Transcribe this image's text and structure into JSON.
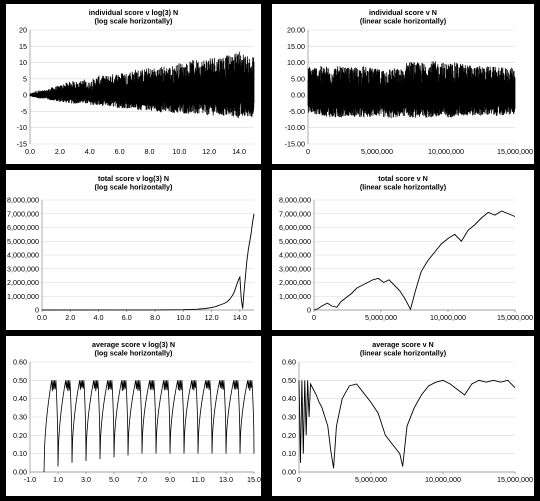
{
  "chart_data": [
    {
      "type": "line",
      "title": [
        "individual score v log(3) N",
        "(log scale horizontally)"
      ],
      "xlim": [
        0,
        15
      ],
      "ylim": [
        -15,
        20
      ],
      "x_ticks": [
        0,
        2,
        4,
        6,
        8,
        10,
        12,
        14
      ],
      "x_tick_labels": [
        "0.0",
        "2.0",
        "4.0",
        "6.0",
        "8.0",
        "10.0",
        "12.0",
        "14.0"
      ],
      "y_ticks": [
        -15,
        -10,
        -5,
        0,
        5,
        10,
        15,
        20
      ],
      "y_tick_labels": [
        "-15",
        "-10",
        "-5",
        "0",
        "5",
        "10",
        "15",
        "20"
      ],
      "grid": "horizontal",
      "color": "#000000",
      "description_series": "noise",
      "x": [
        0.0,
        0.5,
        1.0,
        1.5,
        2.0,
        2.5,
        3.0,
        3.3,
        3.6,
        3.9,
        4.2,
        4.6,
        5.0,
        5.5,
        6.0,
        6.5,
        7.0,
        7.5,
        8.0,
        8.5,
        9.0,
        9.5,
        10.0,
        10.5,
        11.0,
        11.5,
        12.0,
        12.5,
        13.0,
        13.5,
        14.0,
        14.5,
        15.0
      ],
      "y_max": [
        0.5,
        1.5,
        1.5,
        2.5,
        3.0,
        4.0,
        4.5,
        4.0,
        5.0,
        4.0,
        5.0,
        6.0,
        6.0,
        6.5,
        7.0,
        7.0,
        8.0,
        8.0,
        8.5,
        8.5,
        9.0,
        9.0,
        10.0,
        10.0,
        11.0,
        11.0,
        12.0,
        12.0,
        12.5,
        12.0,
        14.0,
        12.0,
        12.0
      ],
      "y_min": [
        -0.5,
        -1.5,
        -1.5,
        -2.5,
        -3.0,
        -3.5,
        -4.0,
        -3.5,
        -4.0,
        -4.0,
        -4.5,
        -5.0,
        -5.0,
        -5.5,
        -6.0,
        -6.0,
        -6.5,
        -7.0,
        -7.0,
        -7.5,
        -8.0,
        -8.0,
        -8.5,
        -8.5,
        -9.0,
        -9.0,
        -9.5,
        -9.5,
        -10.0,
        -10.0,
        -11.0,
        -10.0,
        -10.0
      ]
    },
    {
      "type": "line",
      "title": [
        "individual score v N",
        "(linear scale horizontally)"
      ],
      "xlim": [
        0,
        15000000
      ],
      "ylim": [
        -15,
        20
      ],
      "x_ticks": [
        0,
        5000000,
        10000000,
        15000000
      ],
      "x_tick_labels": [
        "0",
        "5,000,000",
        "10,000,000",
        "15,000,000"
      ],
      "y_ticks": [
        -15,
        -10,
        -5,
        0,
        5,
        10,
        15,
        20
      ],
      "y_tick_labels": [
        "-15.00",
        "-10.00",
        "-5.00",
        "0.00",
        "5.00",
        "10.00",
        "15.00",
        "20.00"
      ],
      "grid": "horizontal",
      "color": "#000000",
      "description_series": "noise",
      "x": [
        0,
        1000000,
        2000000,
        3000000,
        4000000,
        5000000,
        6000000,
        7000000,
        7200000,
        8000000,
        9000000,
        10000000,
        11000000,
        12000000,
        13000000,
        14000000,
        15000000
      ],
      "y_max": [
        9.0,
        9.0,
        9.0,
        8.5,
        9.0,
        8.0,
        8.5,
        8.0,
        11.0,
        10.0,
        10.5,
        10.0,
        10.0,
        9.0,
        9.0,
        8.5,
        8.5
      ],
      "y_min": [
        -8.0,
        -9.0,
        -10.0,
        -9.0,
        -10.0,
        -9.0,
        -10.0,
        -9.0,
        -10.0,
        -10.0,
        -10.0,
        -10.0,
        -9.5,
        -9.0,
        -9.0,
        -9.0,
        -8.5
      ]
    },
    {
      "type": "line",
      "title": [
        "total score v log(3) N",
        "(log scale horizontally)"
      ],
      "xlim": [
        0,
        15
      ],
      "ylim": [
        0,
        8000000
      ],
      "x_ticks": [
        0,
        2,
        4,
        6,
        8,
        10,
        12,
        14
      ],
      "x_tick_labels": [
        "0.0",
        "2.0",
        "4.0",
        "6.0",
        "8.0",
        "10.0",
        "12.0",
        "14.0"
      ],
      "y_ticks": [
        0,
        1000000,
        2000000,
        3000000,
        4000000,
        5000000,
        6000000,
        7000000,
        8000000
      ],
      "y_tick_labels": [
        "0",
        "1,000,000",
        "2,000,000",
        "3,000,000",
        "4,000,000",
        "5,000,000",
        "6,000,000",
        "7,000,000",
        "8,000,000"
      ],
      "grid": "horizontal",
      "color": "#000000",
      "x": [
        0,
        8.0,
        10.0,
        11.0,
        11.5,
        12.0,
        12.3,
        12.5,
        12.7,
        12.9,
        13.1,
        13.3,
        13.5,
        13.6,
        13.7,
        13.8,
        13.9,
        14.0,
        14.1,
        14.2,
        14.3,
        14.4,
        14.5,
        14.6,
        14.7,
        14.8,
        14.9,
        15.0
      ],
      "y": [
        0,
        2000,
        20000,
        60000,
        100000,
        180000,
        250000,
        330000,
        400000,
        480000,
        600000,
        800000,
        1100000,
        1300000,
        1600000,
        1900000,
        2200000,
        2400000,
        800000,
        100000,
        1400000,
        2500000,
        3600000,
        4400000,
        5000000,
        5600000,
        6400000,
        7000000
      ]
    },
    {
      "type": "line",
      "title": [
        "total score v N",
        "(linear scale horizontally)"
      ],
      "xlim": [
        0,
        15000000
      ],
      "ylim": [
        0,
        8000000
      ],
      "x_ticks": [
        0,
        5000000,
        10000000,
        15000000
      ],
      "x_tick_labels": [
        "0",
        "5,000,000",
        "10,000,000",
        "15,000,000"
      ],
      "y_ticks": [
        0,
        1000000,
        2000000,
        3000000,
        4000000,
        5000000,
        6000000,
        7000000,
        8000000
      ],
      "y_tick_labels": [
        "0",
        "1,000,000",
        "2,000,000",
        "3,000,000",
        "4,000,000",
        "5,000,000",
        "6,000,000",
        "7,000,000",
        "8,000,000"
      ],
      "grid": "horizontal",
      "color": "#000000",
      "x": [
        0,
        300000,
        600000,
        1000000,
        1300000,
        1700000,
        2000000,
        2400000,
        2800000,
        3200000,
        3600000,
        4000000,
        4400000,
        4800000,
        5200000,
        5600000,
        6000000,
        6400000,
        6800000,
        7200000,
        7600000,
        8000000,
        8500000,
        9000000,
        9500000,
        10000000,
        10500000,
        11000000,
        11500000,
        12000000,
        12500000,
        13000000,
        13500000,
        14000000,
        14500000,
        15000000
      ],
      "y": [
        0,
        100000,
        300000,
        500000,
        300000,
        200000,
        600000,
        900000,
        1200000,
        1600000,
        1800000,
        2000000,
        2200000,
        2300000,
        2000000,
        2200000,
        1800000,
        1400000,
        800000,
        50000,
        1500000,
        2800000,
        3600000,
        4200000,
        4800000,
        5200000,
        5500000,
        5000000,
        5800000,
        6200000,
        6700000,
        7100000,
        6900000,
        7200000,
        7000000,
        6800000
      ]
    },
    {
      "type": "line",
      "title": [
        "average score v log(3) N",
        "(log scale horizontally)"
      ],
      "xlim": [
        -1,
        15
      ],
      "ylim": [
        0,
        0.6
      ],
      "x_ticks": [
        -1,
        1,
        3,
        5,
        7,
        9,
        11,
        13,
        15
      ],
      "x_tick_labels": [
        "-1.0",
        "1.0",
        "3.0",
        "5.0",
        "7.0",
        "9.0",
        "11.0",
        "13.0",
        "15.0"
      ],
      "y_ticks": [
        0,
        0.1,
        0.2,
        0.3,
        0.4,
        0.5,
        0.6
      ],
      "y_tick_labels": [
        "0.00",
        "0.10",
        "0.20",
        "0.30",
        "0.40",
        "0.50",
        "0.60"
      ],
      "grid": "horizontal",
      "color": "#000000",
      "description_series": "periodic cusps",
      "cusp_x": [
        0,
        1,
        2,
        3,
        4,
        5,
        6,
        7,
        8,
        9,
        10,
        11,
        12,
        13,
        14
      ],
      "cusp_min": [
        0.0,
        0.03,
        0.05,
        0.06,
        0.07,
        0.08,
        0.09,
        0.1,
        0.1,
        0.1,
        0.1,
        0.1,
        0.1,
        0.1,
        0.1
      ],
      "peak_y": 0.5
    },
    {
      "type": "line",
      "title": [
        "average score v N",
        "(linear scale horizontally)"
      ],
      "xlim": [
        0,
        15000000
      ],
      "ylim": [
        0,
        0.6
      ],
      "x_ticks": [
        0,
        5000000,
        10000000,
        15000000
      ],
      "x_tick_labels": [
        "0",
        "5,000,000",
        "10,000,000",
        "15,000,000"
      ],
      "y_ticks": [
        0,
        0.1,
        0.2,
        0.3,
        0.4,
        0.5,
        0.6
      ],
      "y_tick_labels": [
        "0.00",
        "0.10",
        "0.20",
        "0.30",
        "0.40",
        "0.50",
        "0.60"
      ],
      "grid": "horizontal",
      "color": "#000000",
      "x": [
        0,
        100000,
        200000,
        300000,
        400000,
        500000,
        600000,
        700000,
        800000,
        1000000,
        1200000,
        1400000,
        1600000,
        1800000,
        2000000,
        2200000,
        2400000,
        2600000,
        3000000,
        3500000,
        4000000,
        4500000,
        5000000,
        5500000,
        6000000,
        6500000,
        7000000,
        7200000,
        7500000,
        8000000,
        8500000,
        9000000,
        9500000,
        10000000,
        10500000,
        11000000,
        11500000,
        12000000,
        12500000,
        13000000,
        13500000,
        14000000,
        14500000,
        15000000
      ],
      "y": [
        0.5,
        0.05,
        0.5,
        0.1,
        0.5,
        0.2,
        0.5,
        0.3,
        0.48,
        0.45,
        0.42,
        0.38,
        0.35,
        0.3,
        0.25,
        0.12,
        0.02,
        0.25,
        0.4,
        0.47,
        0.48,
        0.43,
        0.38,
        0.32,
        0.2,
        0.15,
        0.1,
        0.03,
        0.25,
        0.35,
        0.42,
        0.47,
        0.49,
        0.5,
        0.48,
        0.45,
        0.42,
        0.48,
        0.5,
        0.49,
        0.5,
        0.49,
        0.5,
        0.46
      ]
    }
  ]
}
